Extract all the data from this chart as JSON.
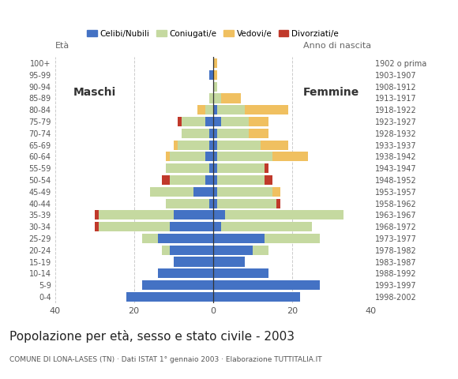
{
  "age_groups": [
    "0-4",
    "5-9",
    "10-14",
    "15-19",
    "20-24",
    "25-29",
    "30-34",
    "35-39",
    "40-44",
    "45-49",
    "50-54",
    "55-59",
    "60-64",
    "65-69",
    "70-74",
    "75-79",
    "80-84",
    "85-89",
    "90-94",
    "95-99",
    "100+"
  ],
  "birth_years": [
    "1998-2002",
    "1993-1997",
    "1988-1992",
    "1983-1987",
    "1978-1982",
    "1973-1977",
    "1968-1972",
    "1963-1967",
    "1958-1962",
    "1953-1957",
    "1948-1952",
    "1943-1947",
    "1938-1942",
    "1933-1937",
    "1928-1932",
    "1923-1927",
    "1918-1922",
    "1913-1917",
    "1908-1912",
    "1903-1907",
    "1902 o prima"
  ],
  "males": {
    "celibe": [
      22,
      18,
      14,
      10,
      11,
      14,
      11,
      10,
      1,
      5,
      2,
      1,
      2,
      1,
      1,
      2,
      0,
      0,
      0,
      1,
      0
    ],
    "coniugato": [
      0,
      0,
      0,
      0,
      2,
      4,
      18,
      19,
      11,
      11,
      9,
      11,
      9,
      8,
      7,
      6,
      2,
      1,
      0,
      0,
      0
    ],
    "vedovo": [
      0,
      0,
      0,
      0,
      0,
      0,
      0,
      0,
      0,
      0,
      0,
      0,
      1,
      1,
      0,
      0,
      2,
      0,
      0,
      0,
      0
    ],
    "divorziato": [
      0,
      0,
      0,
      0,
      0,
      0,
      1,
      1,
      0,
      0,
      2,
      0,
      0,
      0,
      0,
      1,
      0,
      0,
      0,
      0,
      0
    ]
  },
  "females": {
    "nubile": [
      22,
      27,
      14,
      8,
      10,
      13,
      2,
      3,
      1,
      1,
      1,
      1,
      1,
      1,
      1,
      2,
      1,
      0,
      0,
      0,
      0
    ],
    "coniugata": [
      0,
      0,
      0,
      0,
      4,
      14,
      23,
      30,
      15,
      14,
      12,
      12,
      14,
      11,
      8,
      7,
      7,
      2,
      1,
      0,
      0
    ],
    "vedova": [
      0,
      0,
      0,
      0,
      0,
      0,
      0,
      0,
      0,
      2,
      0,
      0,
      9,
      7,
      5,
      5,
      11,
      5,
      0,
      1,
      1
    ],
    "divorziata": [
      0,
      0,
      0,
      0,
      0,
      0,
      0,
      0,
      1,
      0,
      2,
      1,
      0,
      0,
      0,
      0,
      0,
      0,
      0,
      0,
      0
    ]
  },
  "colors": {
    "celibe": "#4472c4",
    "coniugato": "#c5d9a0",
    "vedovo": "#f0c060",
    "divorziato": "#c0392b"
  },
  "title": "Popolazione per età, sesso e stato civile - 2003",
  "subtitle": "COMUNE DI LONA-LASES (TN) · Dati ISTAT 1° gennaio 2003 · Elaborazione TUTTITALIA.IT",
  "xlabel_left": "Maschi",
  "xlabel_right": "Femmine",
  "ylabel_left": "Età",
  "ylabel_right": "Anno di nascita",
  "xlim": 40,
  "legend_labels": [
    "Celibi/Nubili",
    "Coniugati/e",
    "Vedovi/e",
    "Divorziati/e"
  ],
  "background_color": "#ffffff",
  "grid_color": "#cccccc"
}
